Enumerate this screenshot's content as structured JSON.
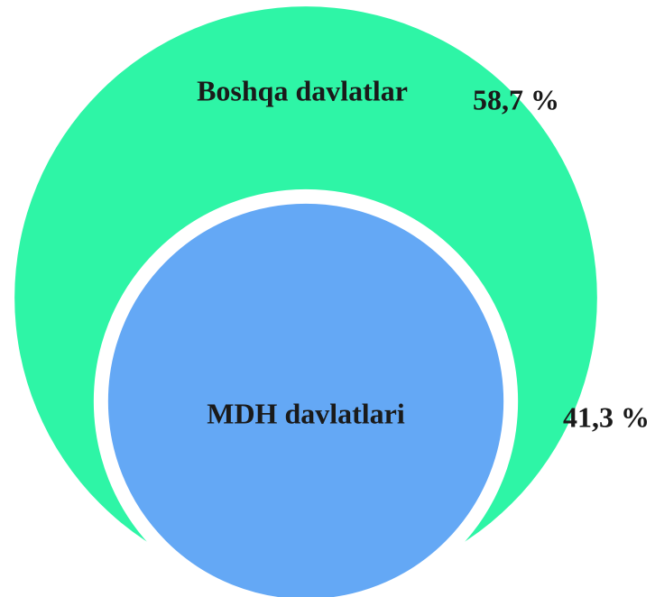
{
  "chart_data": {
    "type": "nested-circle",
    "categories": [
      "Boshqa davlatlar",
      "MDH davlatlari"
    ],
    "values": [
      58.7,
      41.3
    ],
    "value_labels": [
      "58,7 %",
      "41,3 %"
    ],
    "colors": [
      "#2ef5a6",
      "#64a8f5"
    ]
  }
}
